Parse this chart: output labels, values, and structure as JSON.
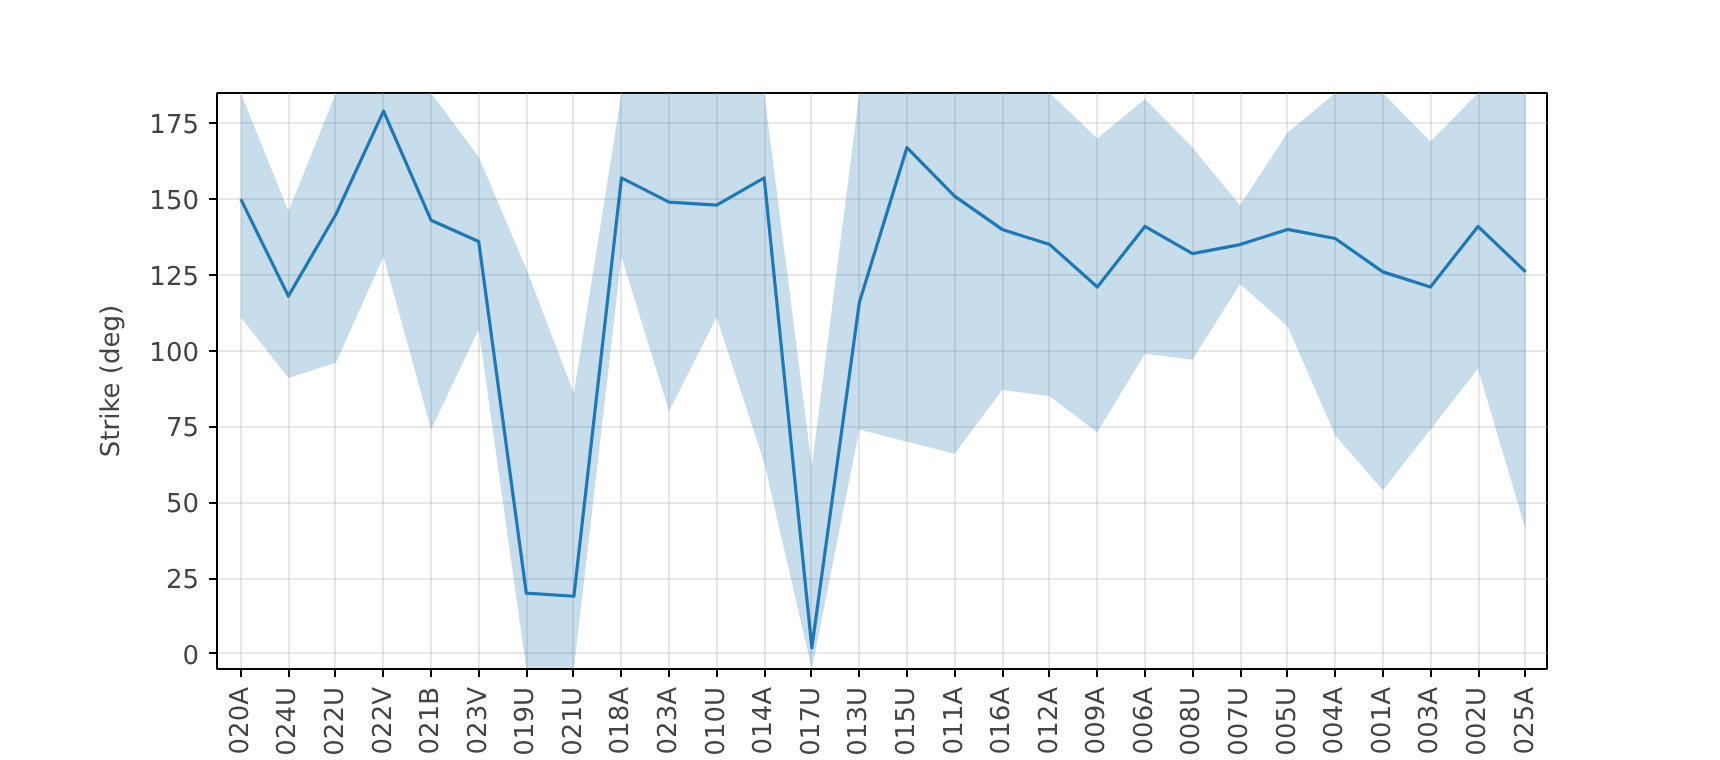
{
  "chart_data": {
    "type": "line",
    "ylabel": "Strike (deg)",
    "categories": [
      "020A",
      "024U",
      "022U",
      "022V",
      "021B",
      "023V",
      "019U",
      "021U",
      "018A",
      "023A",
      "010U",
      "014A",
      "017U",
      "013U",
      "015U",
      "011A",
      "016A",
      "012A",
      "009A",
      "006A",
      "008U",
      "007U",
      "005U",
      "004A",
      "001A",
      "003A",
      "002U",
      "025A"
    ],
    "series": [
      {
        "color": "#1f77b4",
        "values": [
          150,
          118,
          145,
          179,
          143,
          136,
          20,
          19,
          157,
          149,
          148,
          157,
          2,
          116,
          167,
          151,
          140,
          135,
          121,
          141,
          132,
          135,
          140,
          137,
          126,
          121,
          141,
          126
        ],
        "upper": [
          185,
          146,
          185,
          185,
          185,
          164,
          127,
          86,
          185,
          185,
          185,
          185,
          62,
          185,
          185,
          185,
          185,
          185,
          170,
          183,
          167,
          148,
          172,
          185,
          185,
          169,
          185,
          185
        ],
        "lower": [
          111,
          91,
          96,
          131,
          74,
          107,
          -5,
          -5,
          131,
          80,
          111,
          63,
          -5,
          74,
          70,
          66,
          87,
          85,
          73,
          99,
          97,
          122,
          108,
          72,
          54,
          74,
          94,
          41
        ]
      }
    ],
    "ylim": [
      -5,
      185
    ],
    "yticks": [
      0,
      25,
      50,
      75,
      100,
      125,
      150,
      175
    ],
    "grid": true
  }
}
